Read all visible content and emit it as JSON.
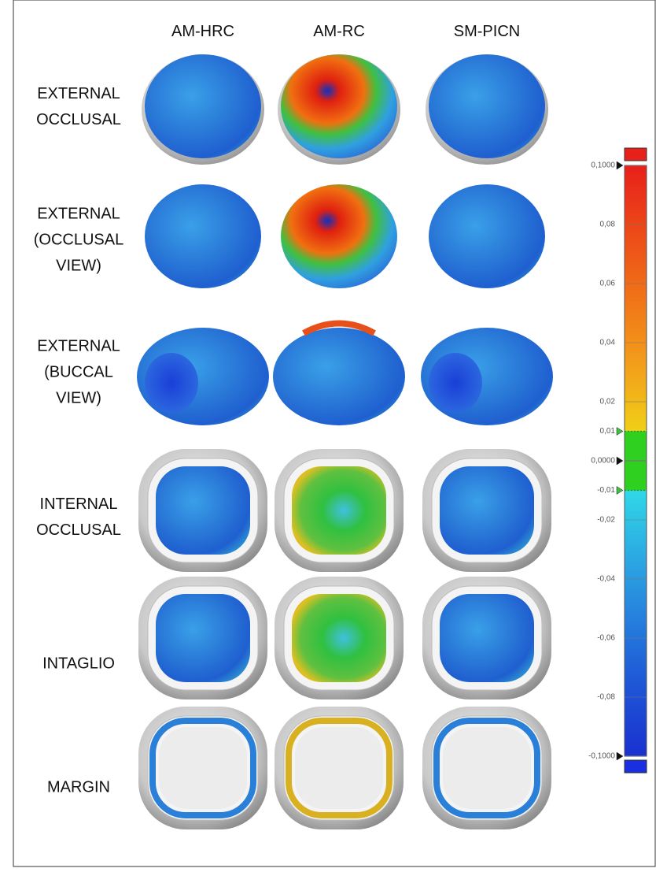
{
  "columns": [
    "AM-HRC",
    "AM-RC",
    "SM-PICN"
  ],
  "rows": [
    {
      "lines": [
        "EXTERNAL",
        "OCCLUSAL"
      ]
    },
    {
      "lines": [
        "EXTERNAL",
        "(OCCLUSAL",
        "VIEW)"
      ]
    },
    {
      "lines": [
        "EXTERNAL",
        "(BUCCAL",
        "VIEW)"
      ]
    },
    {
      "lines": [
        "INTERNAL",
        "OCCLUSAL"
      ]
    },
    {
      "lines": [
        "INTAGLIO"
      ]
    },
    {
      "lines": [
        "MARGIN"
      ]
    }
  ],
  "color_scale": {
    "lim": [
      -0.1,
      0.1
    ],
    "ticks": [
      {
        "value": 0.1,
        "label": "0,1000"
      },
      {
        "value": 0.08,
        "label": "0,08"
      },
      {
        "value": 0.06,
        "label": "0,06"
      },
      {
        "value": 0.04,
        "label": "0,04"
      },
      {
        "value": 0.02,
        "label": "0,02"
      },
      {
        "value": 0.01,
        "label": "0,01"
      },
      {
        "value": 0,
        "label": "0,0000"
      },
      {
        "value": -0.01,
        "label": "-0,01"
      },
      {
        "value": -0.02,
        "label": "-0,02"
      },
      {
        "value": -0.04,
        "label": "-0,04"
      },
      {
        "value": -0.06,
        "label": "-0,06"
      },
      {
        "value": -0.08,
        "label": "-0,08"
      },
      {
        "value": -0.1,
        "label": "-0,1000"
      }
    ]
  }
}
